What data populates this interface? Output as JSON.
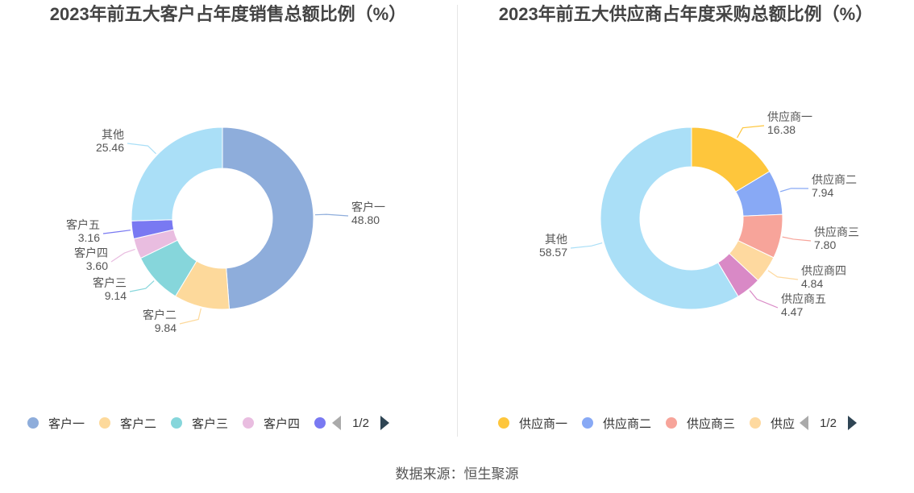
{
  "source": "数据来源：恒生聚源",
  "pager": {
    "text": "1/2"
  },
  "chart_data": [
    {
      "type": "pie",
      "title": "2023年前五大客户占年度销售总额比例（%）",
      "slices": [
        {
          "name": "客户一",
          "value": 48.8,
          "label_value": "48.80",
          "color": "#8eaddb"
        },
        {
          "name": "客户二",
          "value": 9.84,
          "label_value": "9.84",
          "color": "#fdd99b"
        },
        {
          "name": "客户三",
          "value": 9.14,
          "label_value": "9.14",
          "color": "#86d6db"
        },
        {
          "name": "客户四",
          "value": 3.6,
          "label_value": "3.60",
          "color": "#e9bde0"
        },
        {
          "name": "客户五",
          "value": 3.16,
          "label_value": "3.16",
          "color": "#7979f2"
        },
        {
          "name": "其他",
          "value": 25.46,
          "label_value": "25.46",
          "color": "#aadff7"
        }
      ],
      "legend_visible": [
        "客户一",
        "客户二",
        "客户三",
        "客户四",
        ""
      ]
    },
    {
      "type": "pie",
      "title": "2023年前五大供应商占年度采购总额比例（%）",
      "slices": [
        {
          "name": "供应商一",
          "value": 16.38,
          "label_value": "16.38",
          "color": "#fec63c"
        },
        {
          "name": "供应商二",
          "value": 7.94,
          "label_value": "7.94",
          "color": "#88a9f5"
        },
        {
          "name": "供应商三",
          "value": 7.8,
          "label_value": "7.80",
          "color": "#f7a49a"
        },
        {
          "name": "供应商四",
          "value": 4.84,
          "label_value": "4.84",
          "color": "#fed99f"
        },
        {
          "name": "供应商五",
          "value": 4.47,
          "label_value": "4.47",
          "color": "#d989c6"
        },
        {
          "name": "其他",
          "value": 58.57,
          "label_value": "58.57",
          "color": "#aadff7"
        }
      ],
      "legend_visible": [
        "供应商一",
        "供应商二",
        "供应商三",
        "供应"
      ]
    }
  ]
}
